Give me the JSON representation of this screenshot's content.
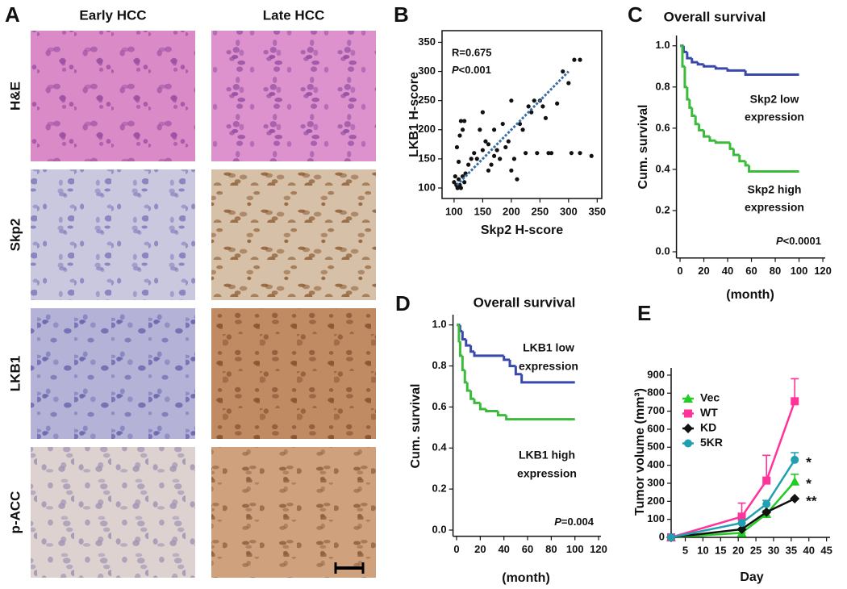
{
  "panel_a": {
    "panel": "A",
    "columns": [
      "Early HCC",
      "Late HCC"
    ],
    "rows": [
      "H&E",
      "Skp2",
      "LKB1",
      "p-ACC"
    ]
  },
  "chart_data": [
    {
      "type": "scatter",
      "panel": "B",
      "x_label": "Skp2 H-score",
      "y_label": "LKB1 H-score",
      "annotations": [
        "R=0.675",
        "P<0.001"
      ],
      "color": "#111111",
      "x": [
        100,
        102,
        104,
        106,
        108,
        110,
        112,
        115,
        118,
        120,
        105,
        110,
        112,
        115,
        118,
        108,
        125,
        130,
        135,
        140,
        145,
        150,
        150,
        155,
        160,
        160,
        165,
        170,
        170,
        175,
        180,
        185,
        190,
        195,
        200,
        200,
        205,
        210,
        215,
        220,
        225,
        230,
        235,
        240,
        245,
        250,
        255,
        260,
        265,
        270,
        280,
        290,
        300,
        305,
        310,
        320,
        320,
        340
      ],
      "y": [
        110,
        120,
        105,
        100,
        115,
        105,
        100,
        120,
        110,
        125,
        170,
        190,
        215,
        200,
        215,
        145,
        140,
        150,
        160,
        150,
        200,
        165,
        230,
        180,
        175,
        130,
        140,
        155,
        200,
        165,
        150,
        210,
        170,
        180,
        250,
        130,
        150,
        115,
        210,
        200,
        160,
        240,
        230,
        250,
        160,
        250,
        240,
        220,
        160,
        160,
        245,
        300,
        280,
        160,
        320,
        320,
        160,
        155
      ],
      "trend_line": {
        "x": [
          105,
          300
        ],
        "y": [
          105,
          300
        ],
        "color": "#3a6ea5"
      },
      "xlim": [
        79,
        358
      ],
      "ylim": [
        82,
        370
      ],
      "xticks": [
        100,
        150,
        200,
        250,
        300,
        350
      ],
      "yticks": [
        100,
        150,
        200,
        250,
        300,
        350
      ]
    },
    {
      "type": "survival",
      "panel": "C",
      "title": "Overall survival",
      "x_label": "(month)",
      "y_label": "Cum. survival",
      "p_value": "P<0.0001",
      "series": [
        {
          "name": [
            "Skp2 low",
            "expression"
          ],
          "color": "#3949ab",
          "x": [
            0,
            3,
            6,
            10,
            15,
            20,
            30,
            40,
            55,
            100
          ],
          "values": [
            1,
            0.97,
            0.94,
            0.92,
            0.91,
            0.9,
            0.89,
            0.88,
            0.86,
            0.86
          ]
        },
        {
          "name": [
            "Skp2 high",
            "expression"
          ],
          "color": "#3cba3c",
          "x": [
            0,
            2,
            4,
            6,
            8,
            10,
            13,
            16,
            20,
            25,
            30,
            42,
            45,
            50,
            55,
            58,
            100
          ],
          "values": [
            1,
            0.9,
            0.8,
            0.74,
            0.7,
            0.66,
            0.62,
            0.59,
            0.56,
            0.54,
            0.53,
            0.5,
            0.47,
            0.44,
            0.42,
            0.39,
            0.39
          ]
        }
      ],
      "xlim": [
        -3,
        122
      ],
      "ylim": [
        -0.03,
        1.05
      ],
      "xticks": [
        0,
        20,
        40,
        60,
        80,
        100,
        120
      ],
      "yticks": [
        {
          "value": 0,
          "label": "0.0"
        },
        0.2,
        0.4,
        0.6,
        0.8,
        {
          "value": 1,
          "label": "1.0"
        }
      ]
    },
    {
      "type": "survival",
      "panel": "D",
      "title": "Overall survival",
      "x_label": "(month)",
      "y_label": "Cum. survival",
      "p_value": "P=0.004",
      "series": [
        {
          "name": [
            "LKB1 low",
            "expression"
          ],
          "color": "#3949ab",
          "x": [
            0,
            3,
            5,
            8,
            12,
            15,
            40,
            45,
            50,
            55,
            100
          ],
          "values": [
            1,
            0.97,
            0.93,
            0.9,
            0.87,
            0.85,
            0.83,
            0.8,
            0.76,
            0.72,
            0.72
          ]
        },
        {
          "name": [
            "LKB1 high",
            "expression"
          ],
          "color": "#3cba3c",
          "x": [
            0,
            2,
            3,
            5,
            7,
            9,
            12,
            15,
            20,
            25,
            35,
            42,
            100
          ],
          "values": [
            1,
            0.92,
            0.85,
            0.78,
            0.72,
            0.68,
            0.64,
            0.62,
            0.59,
            0.58,
            0.56,
            0.54,
            0.54
          ]
        }
      ],
      "xlim": [
        -3,
        122
      ],
      "ylim": [
        -0.03,
        1.05
      ],
      "xticks": [
        0,
        20,
        40,
        60,
        80,
        100,
        120
      ],
      "yticks": [
        {
          "value": 0,
          "label": "0.0"
        },
        0.2,
        0.4,
        0.6,
        0.8,
        {
          "value": 1,
          "label": "1.0"
        }
      ]
    },
    {
      "type": "line",
      "panel": "E",
      "x_label": "Day",
      "y_label": "Tumor volume (mm³)",
      "x": [
        1,
        21,
        28,
        36
      ],
      "series": [
        {
          "name": "Vec",
          "color": "#22cc22",
          "marker": "triangle",
          "values": [
            0,
            25,
            130,
            310
          ],
          "errors": [
            0,
            0,
            20,
            40
          ],
          "significance": "*"
        },
        {
          "name": "WT",
          "color": "#ff3399",
          "marker": "square",
          "values": [
            0,
            115,
            315,
            755
          ],
          "errors": [
            0,
            75,
            140,
            125
          ]
        },
        {
          "name": "KD",
          "color": "#111111",
          "marker": "diamond",
          "values": [
            0,
            45,
            140,
            215
          ],
          "errors": [
            0,
            0,
            0,
            0
          ],
          "significance": "**"
        },
        {
          "name": "5KR",
          "color": "#1f9fb0",
          "marker": "circle",
          "values": [
            0,
            80,
            185,
            430
          ],
          "errors": [
            0,
            0,
            20,
            40
          ],
          "significance": "*"
        }
      ],
      "xlim": [
        1,
        46
      ],
      "ylim": [
        0,
        940
      ],
      "xticks": [
        5,
        10,
        15,
        20,
        25,
        30,
        35,
        40,
        45
      ],
      "yticks": [
        0,
        100,
        200,
        300,
        400,
        500,
        600,
        700,
        800,
        900
      ]
    }
  ]
}
